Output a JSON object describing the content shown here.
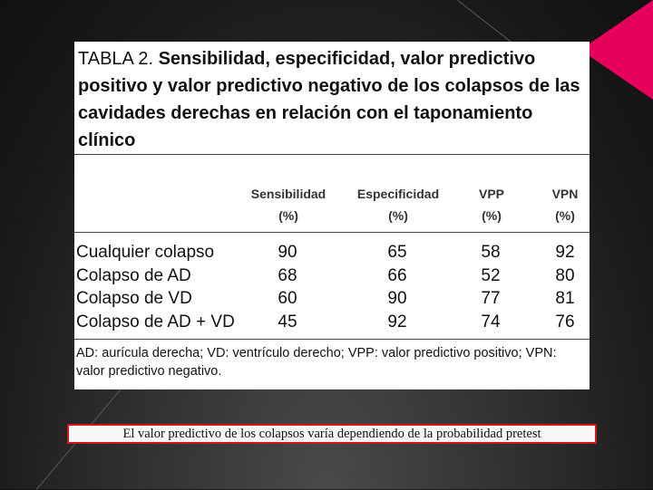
{
  "table": {
    "title_label": "TABLA 2.",
    "title_text": "Sensibilidad, especificidad, valor predictivo positivo y valor predictivo negativo de los colapsos de las cavidades derechas en relación con el taponamiento clínico",
    "columns": [
      {
        "name": "Sensibilidad",
        "unit": "(%)"
      },
      {
        "name": "Especificidad",
        "unit": "(%)"
      },
      {
        "name": "VPP",
        "unit": "(%)"
      },
      {
        "name": "VPN",
        "unit": "(%)"
      }
    ],
    "rows": [
      {
        "label": "Cualquier colapso",
        "values": [
          "90",
          "65",
          "58",
          "92"
        ]
      },
      {
        "label": "Colapso de AD",
        "values": [
          "68",
          "66",
          "52",
          "80"
        ]
      },
      {
        "label": "Colapso de VD",
        "values": [
          "60",
          "90",
          "77",
          "81"
        ]
      },
      {
        "label": "Colapso de AD + VD",
        "values": [
          "45",
          "92",
          "74",
          "76"
        ]
      }
    ],
    "footnote": "AD: aurícula derecha; VD: ventrículo derecho; VPP: valor predictivo positivo; VPN: valor predictivo negativo."
  },
  "caption": "El valor predictivo de los colapsos  varía dependiendo de la probabilidad pretest",
  "colors": {
    "accent": "#e6005c",
    "caption_border": "#d01818"
  }
}
